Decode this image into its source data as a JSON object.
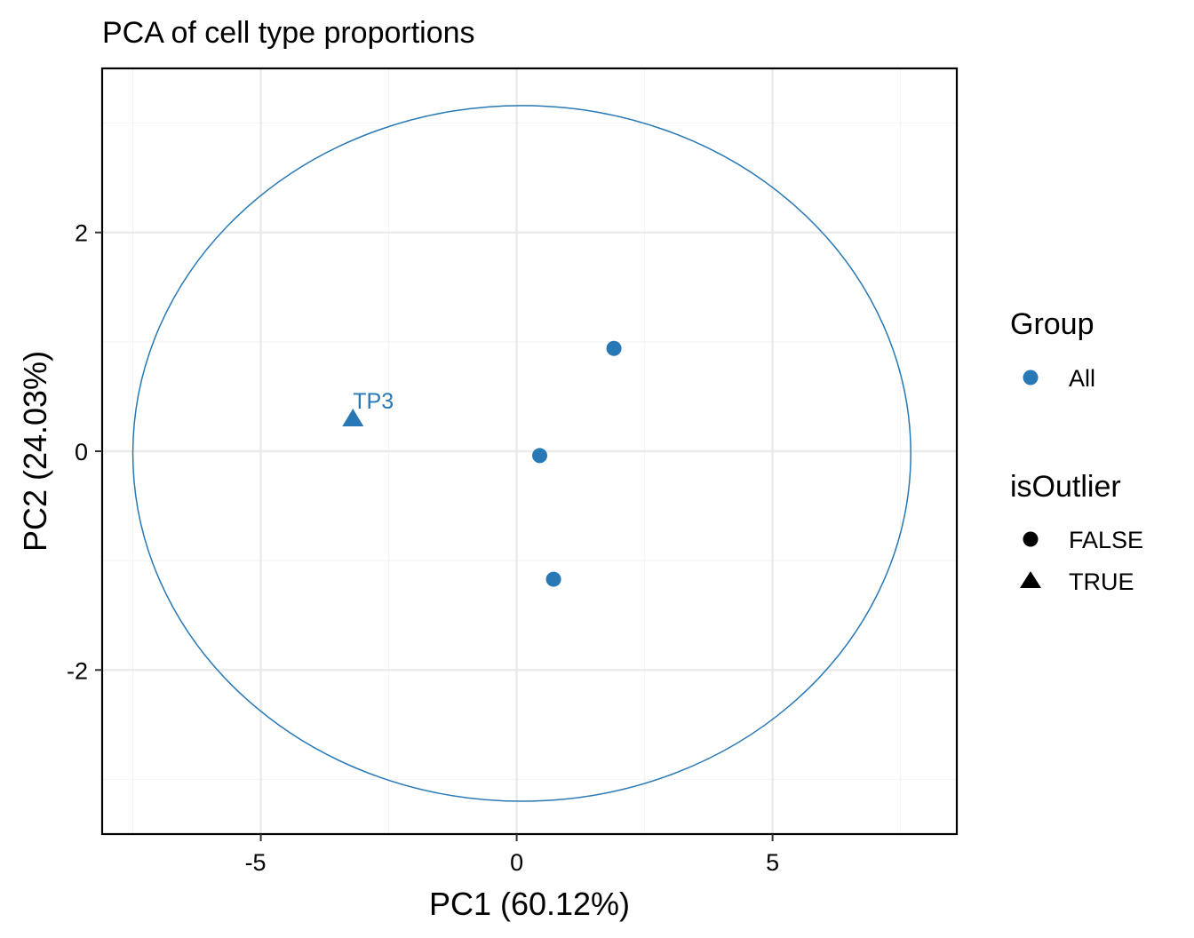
{
  "chart_data": {
    "type": "scatter",
    "title": "PCA of cell type proportions",
    "xlabel": "PC1 (60.12%)",
    "ylabel": "PC2 (24.03%)",
    "xlim": [
      -8.1,
      8.6
    ],
    "ylim": [
      -3.5,
      3.5
    ],
    "x_ticks": [
      -5,
      0,
      5
    ],
    "x_tick_labels": [
      "-5",
      "0",
      "5"
    ],
    "y_ticks": [
      -2,
      0,
      2
    ],
    "y_tick_labels": [
      "-2",
      "0",
      "2"
    ],
    "grid": true,
    "legend_position": "right",
    "legend": {
      "group_title": "Group",
      "groups": [
        {
          "label": "All",
          "color": "#2878B5"
        }
      ],
      "shape_title": "isOutlier",
      "shapes": [
        {
          "label": "FALSE",
          "shape": "circle"
        },
        {
          "label": "TRUE",
          "shape": "triangle"
        }
      ]
    },
    "points": [
      {
        "x": 1.9,
        "y": 0.94,
        "group": "All",
        "isOutlier": "FALSE",
        "label": ""
      },
      {
        "x": 0.45,
        "y": -0.04,
        "group": "All",
        "isOutlier": "FALSE",
        "label": ""
      },
      {
        "x": 0.72,
        "y": -1.17,
        "group": "All",
        "isOutlier": "FALSE",
        "label": ""
      },
      {
        "x": -3.2,
        "y": 0.3,
        "group": "All",
        "isOutlier": "TRUE",
        "label": "TP3"
      }
    ],
    "ellipse": {
      "center_x": 0.1,
      "center_y": -0.02,
      "radius_x": 7.6,
      "radius_y": 3.18,
      "color": "#2878B5"
    }
  }
}
